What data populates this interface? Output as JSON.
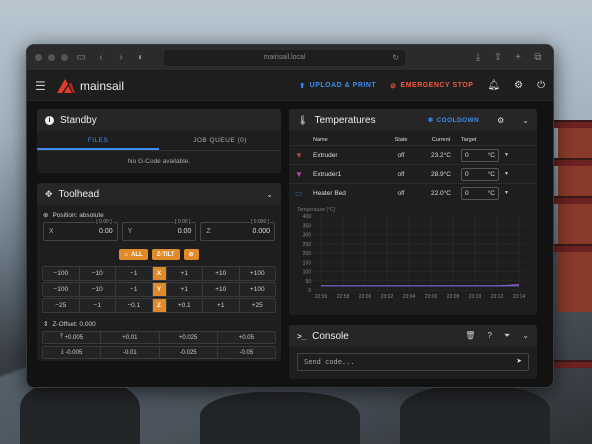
{
  "browser": {
    "url": "mainsail.local"
  },
  "appbar": {
    "brand": "mainsail",
    "upload_label": "UPLOAD & PRINT",
    "estop_label": "EMERGENCY STOP"
  },
  "standby": {
    "title": "Standby",
    "tabs": [
      "FILES",
      "JOB QUEUE (0)"
    ],
    "empty": "No G-Code available."
  },
  "toolhead": {
    "title": "Toolhead",
    "position_label": "Position: absolute",
    "coords": [
      {
        "axis": "X",
        "value": "0.00",
        "small": "[ 0.00 ]"
      },
      {
        "axis": "Y",
        "value": "0.00",
        "small": "[ 0.00 ]"
      },
      {
        "axis": "Z",
        "value": "0.000",
        "small": "[ 0.000 ]"
      }
    ],
    "home_all": "ALL",
    "ztilt": "Z-TILT",
    "jog_rows": [
      {
        "left": [
          "−100",
          "−10",
          "−1"
        ],
        "axis": "X",
        "right": [
          "+1",
          "+10",
          "+100"
        ]
      },
      {
        "left": [
          "−100",
          "−10",
          "−1"
        ],
        "axis": "Y",
        "right": [
          "+1",
          "+10",
          "+100"
        ]
      },
      {
        "left": [
          "−25",
          "−1",
          "−0.1"
        ],
        "axis": "Z",
        "right": [
          "+0.1",
          "+1",
          "+25"
        ]
      }
    ],
    "zoffset_label": "Z-Offset: 0.000",
    "zoffset_up": [
      "+0.005",
      "+0.01",
      "+0.025",
      "+0.05"
    ],
    "zoffset_down": [
      "-0.005",
      "-0.01",
      "-0.025",
      "-0.05"
    ]
  },
  "temperatures": {
    "title": "Temperatures",
    "cooldown": "COOLDOWN",
    "headers": [
      "Name",
      "State",
      "Current",
      "Target"
    ],
    "rows": [
      {
        "name": "Extruder",
        "state": "off",
        "current": "23.2°C",
        "target": "0",
        "unit": "°C",
        "color": "#b44"
      },
      {
        "name": "Extruder1",
        "state": "off",
        "current": "28.9°C",
        "target": "0",
        "unit": "°C",
        "color": "#b4b"
      },
      {
        "name": "Heater Bed",
        "state": "off",
        "current": "22.0°C",
        "target": "0",
        "unit": "°C",
        "color": "#46c"
      }
    ]
  },
  "chart_data": {
    "type": "line",
    "ylabel": "Temperature [°C]",
    "ylim": [
      0,
      400
    ],
    "yticks": [
      0,
      50,
      100,
      150,
      200,
      250,
      300,
      350,
      400
    ],
    "xticks": [
      "22:56",
      "22:58",
      "23:00",
      "23:02",
      "23:04",
      "23:06",
      "23:08",
      "23:10",
      "23:12",
      "23:14"
    ],
    "grid": true,
    "series": [
      {
        "name": "Extruder",
        "color": "#c04848",
        "values": [
          23,
          23,
          23,
          23,
          23,
          23,
          23,
          23,
          23,
          23
        ]
      },
      {
        "name": "Extruder1",
        "color": "#b050c0",
        "values": [
          22,
          22,
          22,
          22,
          22,
          22,
          22,
          22,
          22,
          29
        ]
      },
      {
        "name": "Heater Bed",
        "color": "#4a6ad0",
        "values": [
          22,
          22,
          22,
          22,
          22,
          22,
          22,
          22,
          22,
          22
        ]
      }
    ]
  },
  "console": {
    "title": "Console",
    "placeholder": "Send code..."
  }
}
